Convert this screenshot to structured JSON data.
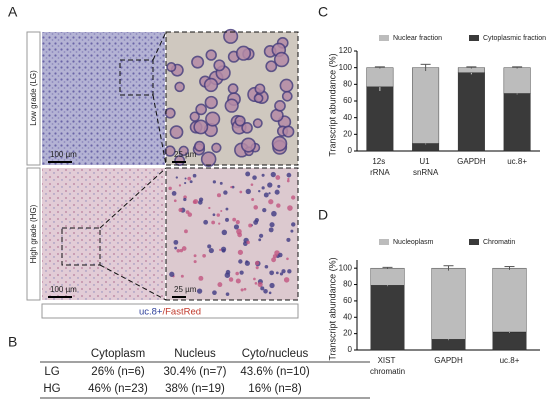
{
  "panel_labels": [
    "A",
    "B",
    "C",
    "D"
  ],
  "images": {
    "row_labels": [
      "Low grade (LG)",
      "High grade (HG)"
    ],
    "scale_bars": [
      "100 µm",
      "25 µm",
      "100 µm",
      "25 µm"
    ],
    "caption": [
      "uc.8+",
      "/FastRed"
    ]
  },
  "table": {
    "columns": [
      "Cytoplasm",
      "Nucleus",
      "Cyto/nucleus"
    ],
    "rows": [
      [
        "LG",
        "26% (n=6)",
        "30.4% (n=7)",
        "43.6% (n=10)"
      ],
      [
        "HG",
        "46% (n=23)",
        "38% (n=19)",
        "16% (n=8)"
      ]
    ]
  },
  "chart_data": [
    {
      "type": "bar",
      "stacked": true,
      "ylabel": "Transcript abundance (%)",
      "categories": [
        "12s rRNA",
        "U1 snRNA",
        "GAPDH",
        "uc.8+"
      ],
      "series": [
        {
          "name": "Cytoplasmic fraction",
          "color": "#3a3a3a",
          "values": [
            77,
            9,
            94,
            69
          ],
          "errors": [
            5,
            1,
            2,
            1
          ]
        },
        {
          "name": "Nuclear fraction",
          "color": "#bcbcbc",
          "values": [
            23,
            91,
            6,
            31
          ],
          "errors": [
            1,
            4,
            1,
            1
          ]
        }
      ],
      "ylim": [
        0,
        120
      ],
      "yticks": [
        0,
        20,
        40,
        60,
        80,
        100,
        120
      ]
    },
    {
      "type": "bar",
      "stacked": true,
      "ylabel": "Transcript abundance (%)",
      "categories": [
        "XIST chromatin",
        "GAPDH",
        "uc.8+"
      ],
      "series": [
        {
          "name": "Chromatin",
          "color": "#3a3a3a",
          "values": [
            79,
            13,
            22
          ],
          "errors": [
            1,
            1,
            1
          ]
        },
        {
          "name": "Nucleoplasm",
          "color": "#bcbcbc",
          "values": [
            21,
            87,
            78
          ],
          "errors": [
            1,
            3,
            2
          ]
        }
      ],
      "ylim": [
        0,
        110
      ],
      "yticks": [
        0,
        20,
        40,
        60,
        80,
        100
      ]
    }
  ]
}
